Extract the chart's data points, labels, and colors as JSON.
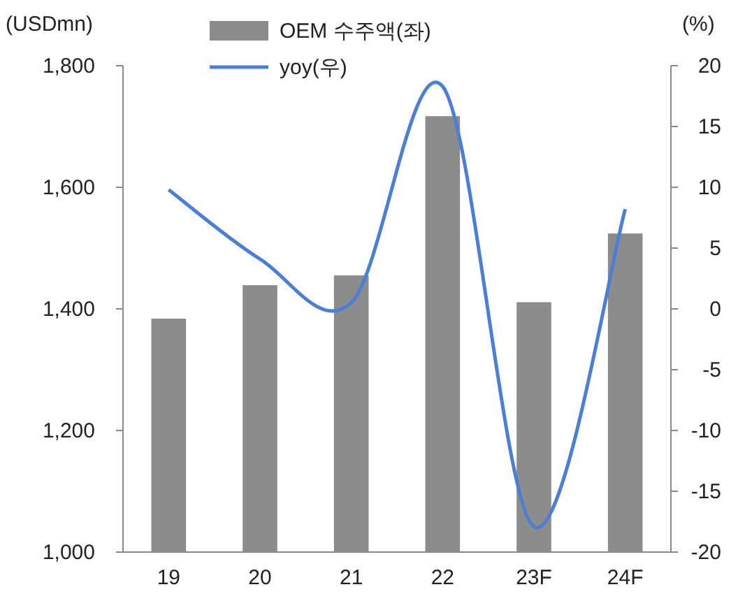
{
  "chart_data": {
    "type": "bar",
    "categories": [
      "19",
      "20",
      "21",
      "22",
      "23F",
      "24F"
    ],
    "series": [
      {
        "name": "OEM 수주액(좌)",
        "color": "#8c8c8c",
        "values": [
          1384,
          1439,
          1455,
          1717,
          1411,
          1524
        ]
      },
      {
        "name": "yoy(우)",
        "type": "line",
        "axis": "y2",
        "color": "#4a7fd4",
        "values": [
          9.8,
          4.1,
          0.5,
          18.3,
          -17.9,
          8.2
        ]
      }
    ],
    "ylabel": "(USDmn)",
    "y2label": "(%)",
    "ylim": [
      1000,
      1800
    ],
    "yticks": [
      {
        "value": 1000,
        "label": "1,000"
      },
      {
        "value": 1200,
        "label": "1,200"
      },
      {
        "value": 1400,
        "label": "1,400"
      },
      {
        "value": 1600,
        "label": "1,600"
      },
      {
        "value": 1800,
        "label": "1,800"
      }
    ],
    "y2lim": [
      -20,
      20
    ],
    "y2ticks": [
      -20,
      -15,
      -10,
      -5,
      0,
      5,
      10,
      15,
      20
    ],
    "legend": "top",
    "grid": false,
    "marker": "none",
    "line_style": "solid"
  }
}
